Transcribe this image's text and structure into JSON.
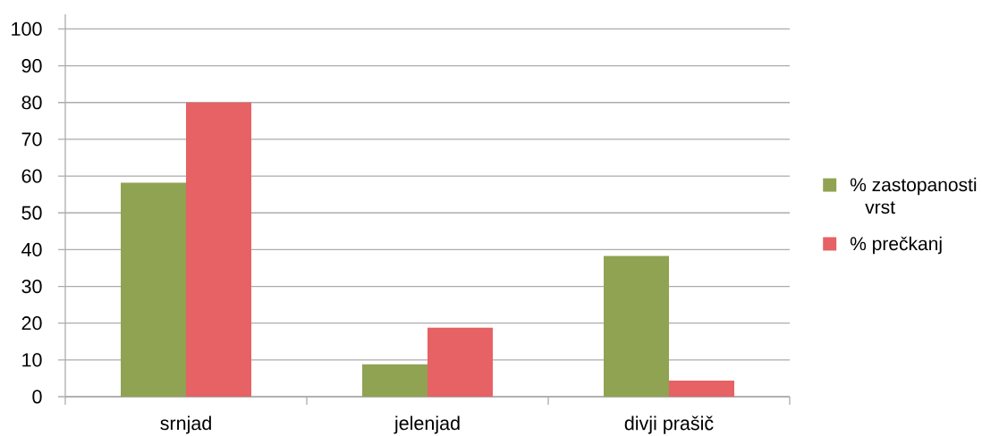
{
  "chart_data": {
    "type": "bar",
    "categories": [
      "srnjad",
      "jelenjad",
      "divji prašič"
    ],
    "series": [
      {
        "name": "% zastopanosti vrst",
        "color": "#8fa353",
        "values": [
          58.2,
          8.8,
          38.3
        ]
      },
      {
        "name": "% prečkanj",
        "color": "#e66264",
        "values": [
          80,
          18.8,
          4.4
        ]
      }
    ],
    "ylim": [
      0,
      104
    ],
    "yticks": [
      0,
      10,
      20,
      30,
      40,
      50,
      60,
      70,
      80,
      90,
      100
    ],
    "grid": "y",
    "legend": "right"
  }
}
